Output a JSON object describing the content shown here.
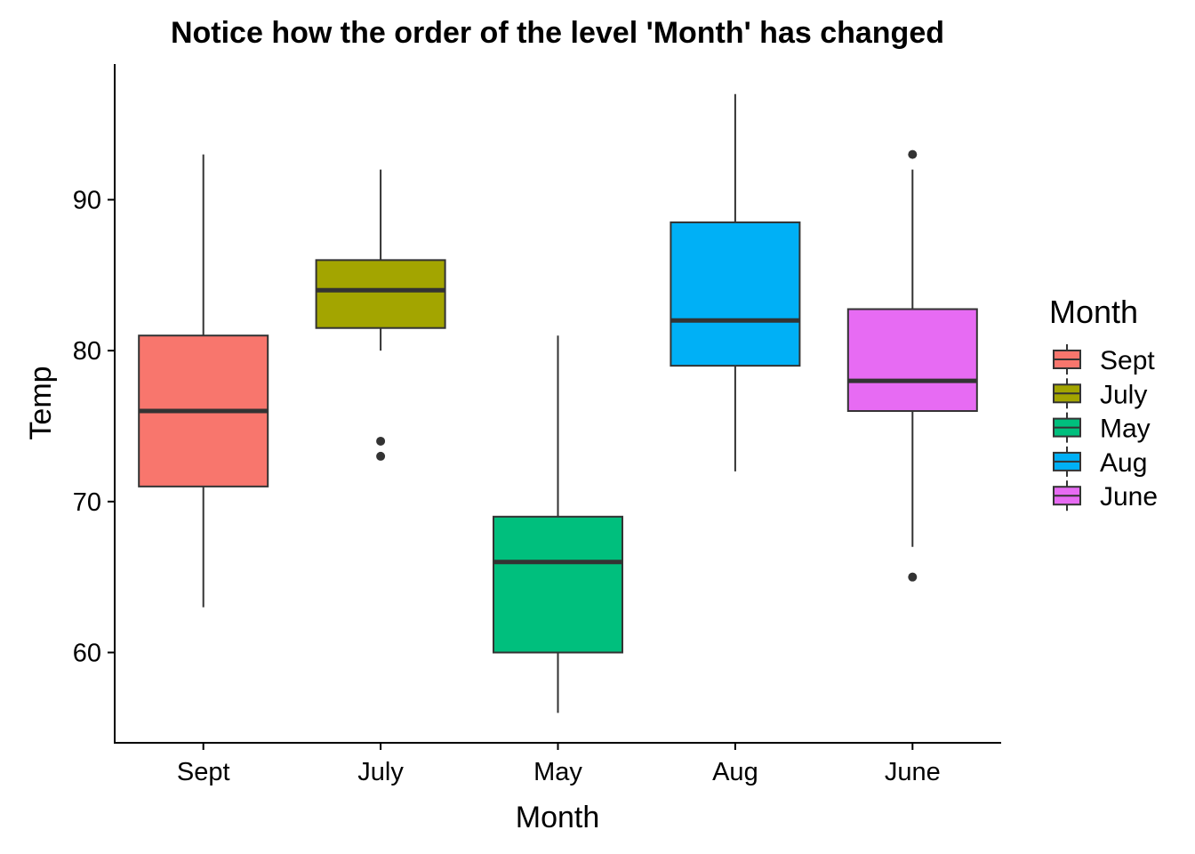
{
  "chart_data": {
    "type": "box",
    "title": "Notice how the order of the level 'Month' has changed",
    "xlabel": "Month",
    "ylabel": "Temp",
    "ylim": [
      54.5,
      99.5
    ],
    "yticks": [
      60,
      70,
      80,
      90
    ],
    "grid": false,
    "legend": {
      "title": "Month",
      "position": "right",
      "entries": [
        "Sept",
        "July",
        "May",
        "Aug",
        "June"
      ]
    },
    "categories": [
      "Sept",
      "July",
      "May",
      "Aug",
      "June"
    ],
    "boxes": [
      {
        "category": "Sept",
        "color": "#F8766D",
        "whisker_low": 63,
        "q1": 71,
        "median": 76,
        "q3": 81,
        "whisker_high": 93,
        "outliers": []
      },
      {
        "category": "July",
        "color": "#A3A500",
        "whisker_low": 80,
        "q1": 81.5,
        "median": 84,
        "q3": 86,
        "whisker_high": 92,
        "outliers": [
          73,
          74
        ]
      },
      {
        "category": "May",
        "color": "#00BF7D",
        "whisker_low": 56,
        "q1": 60,
        "median": 66,
        "q3": 69,
        "whisker_high": 81,
        "outliers": []
      },
      {
        "category": "Aug",
        "color": "#00B0F6",
        "whisker_low": 72,
        "q1": 79,
        "median": 82,
        "q3": 88.5,
        "whisker_high": 97,
        "outliers": []
      },
      {
        "category": "June",
        "color": "#E76BF3",
        "whisker_low": 67,
        "q1": 76,
        "median": 78,
        "q3": 82.75,
        "whisker_high": 92,
        "outliers": [
          65,
          93
        ]
      }
    ]
  }
}
